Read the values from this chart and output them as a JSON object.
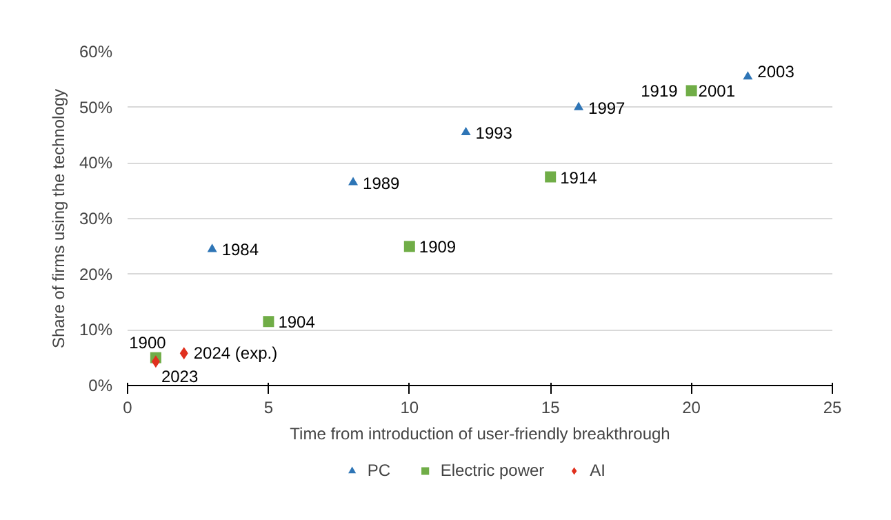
{
  "chart_data": {
    "type": "scatter",
    "xlabel": "Time from introduction of user-friendly breakthrough",
    "ylabel": "Share of firms using the technology",
    "xlim": [
      0,
      25
    ],
    "xticks": [
      0,
      5,
      10,
      15,
      20,
      25
    ],
    "ylim": [
      0,
      60
    ],
    "yticks": [
      {
        "value": 0,
        "label": "0%"
      },
      {
        "value": 10,
        "label": "10%"
      },
      {
        "value": 20,
        "label": "20%"
      },
      {
        "value": 30,
        "label": "30%"
      },
      {
        "value": 40,
        "label": "40%"
      },
      {
        "value": 50,
        "label": "50%"
      },
      {
        "value": 60,
        "label": "60%"
      }
    ],
    "grid": "y",
    "legend": "bottom",
    "series": [
      {
        "name": "PC",
        "color": "#2e75b6",
        "marker": "triangle",
        "x": [
          3,
          8,
          12,
          16,
          20,
          22
        ],
        "values": [
          24.5,
          36.5,
          45.5,
          50,
          null,
          55.5
        ]
      },
      {
        "name": "Electric power",
        "color": "#70ad47",
        "marker": "square",
        "x": [
          1,
          5,
          10,
          15,
          20
        ],
        "values": [
          5,
          11.5,
          25,
          37.5,
          53
        ]
      },
      {
        "name": "AI",
        "color": "#e0301e",
        "marker": "diamond",
        "x": [
          1,
          2
        ],
        "values": [
          4.3,
          5.8
        ]
      }
    ],
    "annotations": [
      {
        "text": "1984",
        "x": 3,
        "y": 24.5
      },
      {
        "text": "1989",
        "x": 8,
        "y": 36.5
      },
      {
        "text": "1993",
        "x": 12,
        "y": 45.5
      },
      {
        "text": "1997",
        "x": 16,
        "y": 50
      },
      {
        "text": "2001",
        "x": 20,
        "y": 53
      },
      {
        "text": "2003",
        "x": 22,
        "y": 55.5
      },
      {
        "text": "1900",
        "x": 1,
        "y": 5
      },
      {
        "text": "1904",
        "x": 5,
        "y": 11.5
      },
      {
        "text": "1909",
        "x": 10,
        "y": 25
      },
      {
        "text": "1914",
        "x": 15,
        "y": 37.5
      },
      {
        "text": "1919",
        "x": 20,
        "y": 53
      },
      {
        "text": "2023",
        "x": 1,
        "y": 4.3
      },
      {
        "text": "2024 (exp.)",
        "x": 2,
        "y": 5.8
      }
    ]
  }
}
